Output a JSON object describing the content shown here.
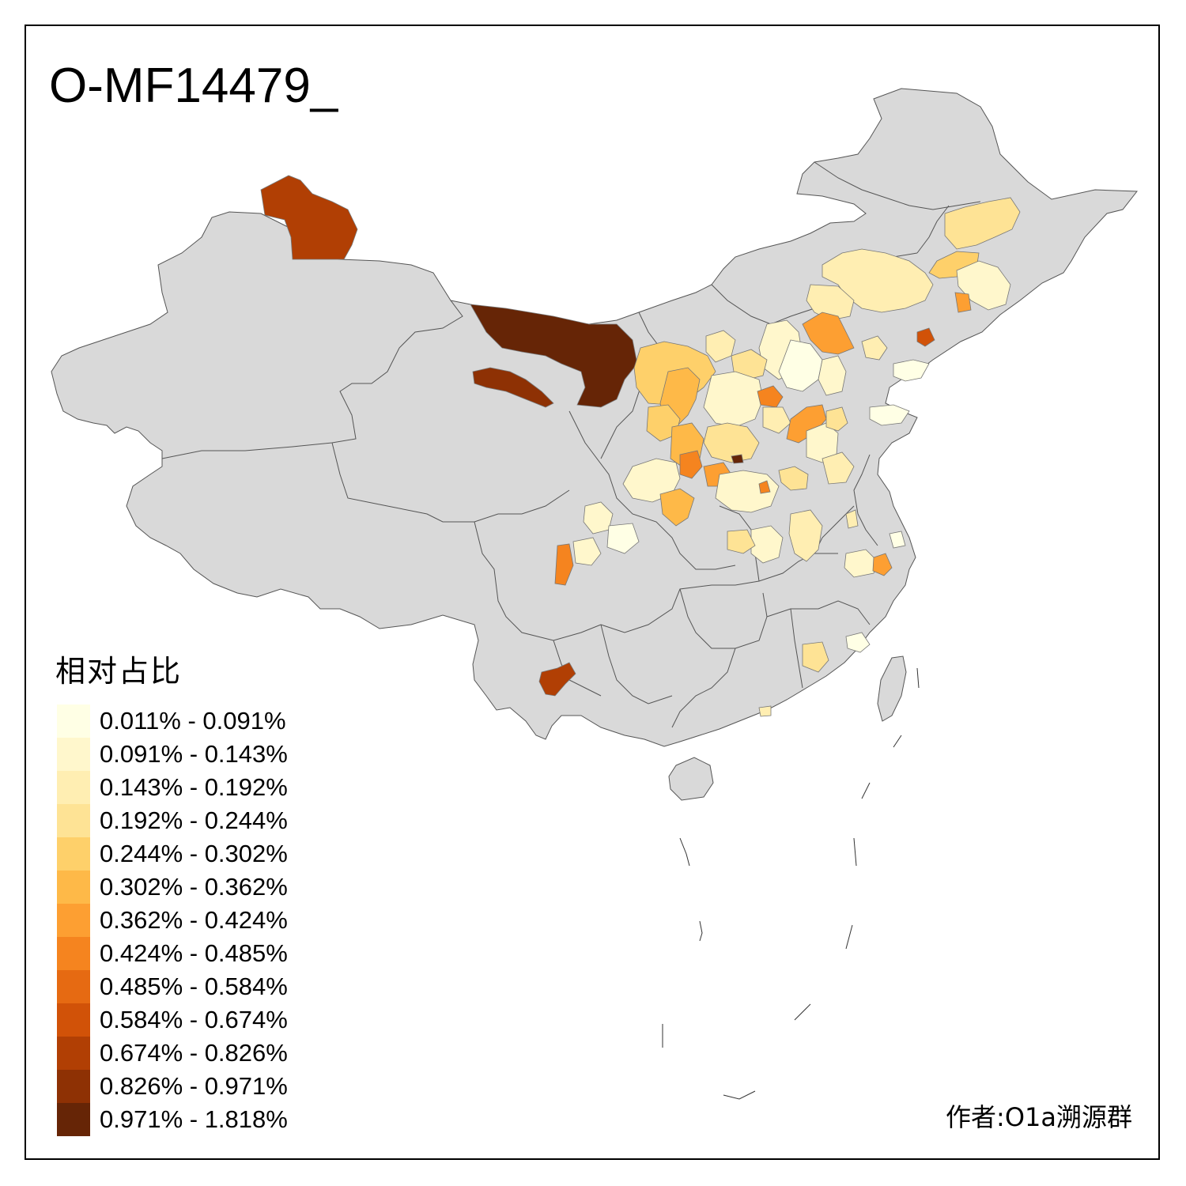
{
  "title": "O-MF14479_",
  "legend": {
    "title": "相对占比",
    "classes": [
      {
        "label": "0.011% - 0.091%",
        "color": "#FFFFE5"
      },
      {
        "label": "0.091% - 0.143%",
        "color": "#FFF7CC"
      },
      {
        "label": "0.143% - 0.192%",
        "color": "#FFEEB2"
      },
      {
        "label": "0.192% - 0.244%",
        "color": "#FEE395"
      },
      {
        "label": "0.244% - 0.302%",
        "color": "#FED06A"
      },
      {
        "label": "0.302% - 0.362%",
        "color": "#FEB948"
      },
      {
        "label": "0.362% - 0.424%",
        "color": "#FD9F32"
      },
      {
        "label": "0.424% - 0.485%",
        "color": "#F5841F"
      },
      {
        "label": "0.485% - 0.584%",
        "color": "#E66A12"
      },
      {
        "label": "0.584% - 0.674%",
        "color": "#D15208"
      },
      {
        "label": "0.674% - 0.826%",
        "color": "#B13F04"
      },
      {
        "label": "0.826% - 0.971%",
        "color": "#8E3104"
      },
      {
        "label": "0.971% - 1.818%",
        "color": "#662506"
      }
    ]
  },
  "author": "作者:O1a溯源群",
  "colors": {
    "no_data": "#D9D9D9",
    "boundary": "#555555"
  }
}
